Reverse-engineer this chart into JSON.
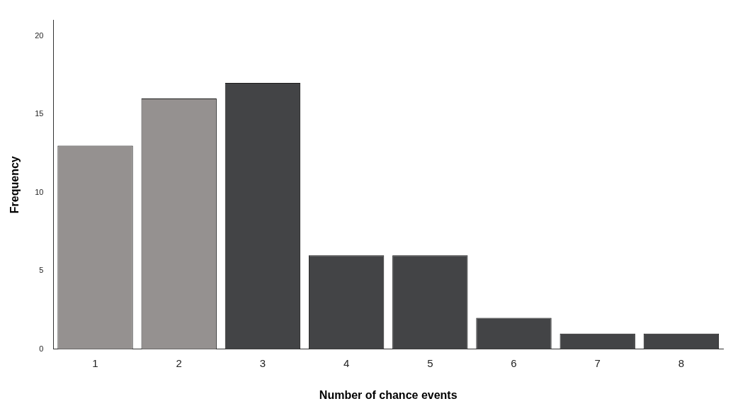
{
  "chart_data": {
    "type": "bar",
    "xlabel": "Number of chance events",
    "ylabel": "Frequency",
    "categories": [
      "1",
      "2",
      "3",
      "4",
      "5",
      "6",
      "7",
      "8"
    ],
    "values": [
      13,
      16,
      17,
      6,
      6,
      2,
      1,
      1
    ],
    "colors": [
      "#959190",
      "#959190",
      "#434446",
      "#434446",
      "#434446",
      "#434446",
      "#434446",
      "#434446"
    ],
    "ylim": [
      0,
      21
    ],
    "yticks": [
      0,
      5,
      10,
      15,
      20
    ],
    "grid": false,
    "legend": false
  }
}
